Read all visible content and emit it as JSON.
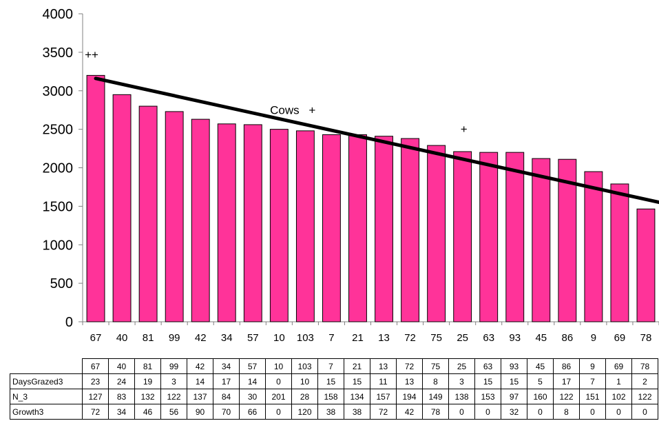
{
  "chart_data": {
    "type": "bar",
    "title": "",
    "xlabel": "",
    "ylabel": "",
    "ylim": [
      0,
      4000
    ],
    "yticks": [
      0,
      500,
      1000,
      1500,
      2000,
      2500,
      3000,
      3500,
      4000
    ],
    "categories": [
      "67",
      "40",
      "81",
      "99",
      "42",
      "34",
      "57",
      "10",
      "103",
      "7",
      "21",
      "13",
      "72",
      "75",
      "25",
      "63",
      "93",
      "45",
      "86",
      "9",
      "69",
      "78"
    ],
    "values": [
      3200,
      2950,
      2800,
      2730,
      2630,
      2570,
      2560,
      2500,
      2480,
      2430,
      2430,
      2410,
      2380,
      2290,
      2210,
      2200,
      2200,
      2120,
      2110,
      1950,
      1790,
      1465
    ],
    "bar_color": "#ff3399",
    "trendline": {
      "type": "linear",
      "start": 3160,
      "end": 1550,
      "color": "#000000"
    },
    "grid": false,
    "annotations": [
      {
        "text": "++",
        "category": "67",
        "y": 3420
      },
      {
        "text": "Cows",
        "category": "103",
        "y": 2700
      },
      {
        "text": "+",
        "category": "103",
        "y": 2700
      },
      {
        "text": "+",
        "category": "25",
        "y": 2450
      }
    ],
    "table": {
      "header": [
        "67",
        "40",
        "81",
        "99",
        "42",
        "34",
        "57",
        "10",
        "103",
        "7",
        "21",
        "13",
        "72",
        "75",
        "25",
        "63",
        "93",
        "45",
        "86",
        "9",
        "69",
        "78"
      ],
      "rows": [
        {
          "label": "DaysGrazed3",
          "values": [
            "23",
            "24",
            "19",
            "3",
            "14",
            "17",
            "14",
            "0",
            "10",
            "15",
            "15",
            "11",
            "13",
            "8",
            "3",
            "15",
            "15",
            "5",
            "17",
            "7",
            "1",
            "2"
          ]
        },
        {
          "label": "N_3",
          "values": [
            "127",
            "83",
            "132",
            "122",
            "137",
            "84",
            "30",
            "201",
            "28",
            "158",
            "134",
            "157",
            "194",
            "149",
            "138",
            "153",
            "97",
            "160",
            "122",
            "151",
            "102",
            "122"
          ]
        },
        {
          "label": "Growth3",
          "values": [
            "72",
            "34",
            "46",
            "56",
            "90",
            "70",
            "66",
            "0",
            "120",
            "38",
            "38",
            "72",
            "42",
            "78",
            "0",
            "0",
            "32",
            "0",
            "8",
            "0",
            "0",
            "0"
          ]
        }
      ]
    }
  }
}
